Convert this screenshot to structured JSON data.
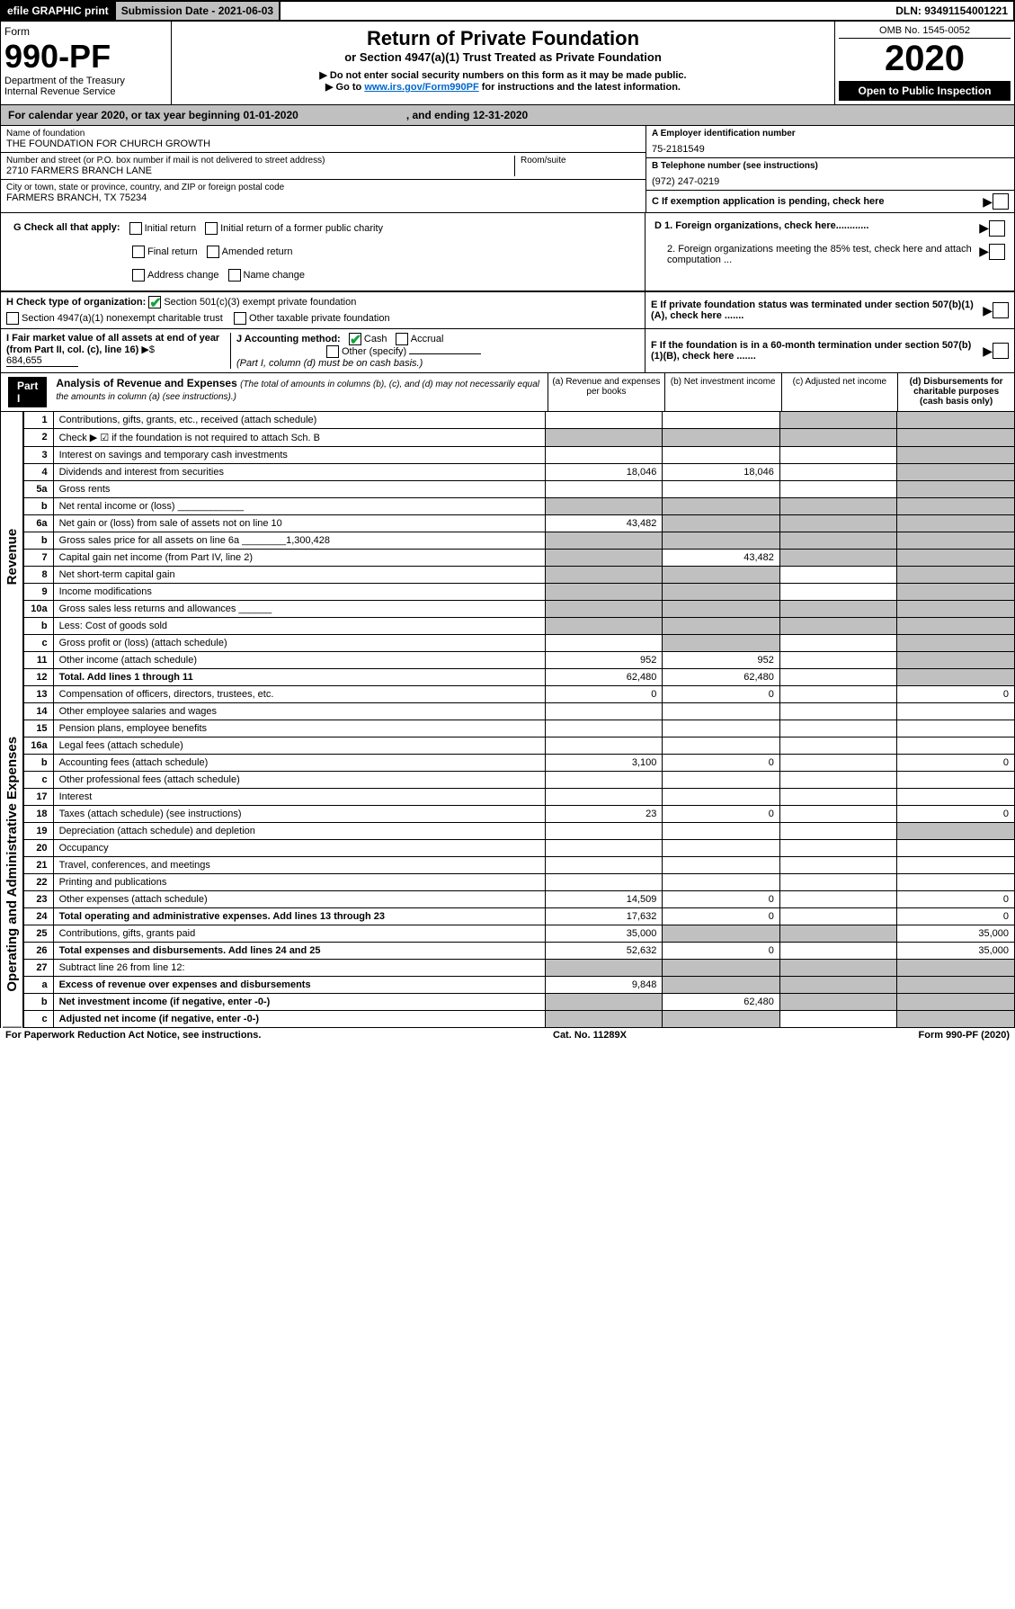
{
  "topbar": {
    "efile": "efile GRAPHIC print",
    "submission": "Submission Date - 2021-06-03",
    "dln": "DLN: 93491154001221"
  },
  "header": {
    "form": "Form",
    "form_no": "990-PF",
    "dept1": "Department of the Treasury",
    "dept2": "Internal Revenue Service",
    "title": "Return of Private Foundation",
    "subtitle": "or Section 4947(a)(1) Trust Treated as Private Foundation",
    "instr1": "▶ Do not enter social security numbers on this form as it may be made public.",
    "instr2_pre": "▶ Go to ",
    "instr2_link": "www.irs.gov/Form990PF",
    "instr2_post": " for instructions and the latest information.",
    "omb": "OMB No. 1545-0052",
    "year": "2020",
    "pub": "Open to Public Inspection"
  },
  "cal_year": {
    "pre": "For calendar year 2020, or tax year beginning 01-01-2020",
    "end": ", and ending 12-31-2020"
  },
  "name": {
    "label": "Name of foundation",
    "val": "THE FOUNDATION FOR CHURCH GROWTH"
  },
  "ein": {
    "label": "A Employer identification number",
    "val": "75-2181549"
  },
  "addr": {
    "label": "Number and street (or P.O. box number if mail is not delivered to street address)",
    "val": "2710 FARMERS BRANCH LANE",
    "room": "Room/suite"
  },
  "phone": {
    "label": "B Telephone number (see instructions)",
    "val": "(972) 247-0219"
  },
  "city": {
    "label": "City or town, state or province, country, and ZIP or foreign postal code",
    "val": "FARMERS BRANCH, TX  75234"
  },
  "c_pending": "C If exemption application is pending, check here",
  "g": {
    "label": "G Check all that apply:",
    "initial": "Initial return",
    "initial_pub": "Initial return of a former public charity",
    "final": "Final return",
    "amended": "Amended return",
    "addr_chg": "Address change",
    "name_chg": "Name change"
  },
  "d": {
    "d1": "D 1. Foreign organizations, check here............",
    "d2": "2. Foreign organizations meeting the 85% test, check here and attach computation ..."
  },
  "h": {
    "label": "H Check type of organization:",
    "s501": "Section 501(c)(3) exempt private foundation",
    "s4947": "Section 4947(a)(1) nonexempt charitable trust",
    "other_tax": "Other taxable private foundation"
  },
  "e": "E If private foundation status was terminated under section 507(b)(1)(A), check here .......",
  "i": {
    "label": "I Fair market value of all assets at end of year (from Part II, col. (c), line 16)",
    "val": "684,655"
  },
  "j": {
    "label": "J Accounting method:",
    "cash": "Cash",
    "accrual": "Accrual",
    "other": "Other (specify)",
    "note": "(Part I, column (d) must be on cash basis.)"
  },
  "f": "F If the foundation is in a 60-month termination under section 507(b)(1)(B), check here .......",
  "part1": {
    "label": "Part I",
    "title": "Analysis of Revenue and Expenses",
    "note": "(The total of amounts in columns (b), (c), and (d) may not necessarily equal the amounts in column (a) (see instructions).)",
    "col_a": "(a)  Revenue and expenses per books",
    "col_b": "(b)  Net investment income",
    "col_c": "(c)  Adjusted net income",
    "col_d": "(d)  Disbursements for charitable purposes (cash basis only)"
  },
  "side_rev": "Revenue",
  "side_exp": "Operating and Administrative Expenses",
  "rows": [
    {
      "n": "1",
      "desc": "Contributions, gifts, grants, etc., received (attach schedule)",
      "a": "",
      "b": "",
      "c": "",
      "d": "",
      "shade_c": true,
      "shade_d": true
    },
    {
      "n": "2",
      "desc": "Check ▶ ☑ if the foundation is not required to attach Sch. B",
      "a": "",
      "b": "",
      "c": "",
      "d": "",
      "shade_a": true,
      "shade_b": true,
      "shade_c": true,
      "shade_d": true,
      "bold_not": true
    },
    {
      "n": "3",
      "desc": "Interest on savings and temporary cash investments",
      "a": "",
      "b": "",
      "c": "",
      "d": "",
      "shade_d": true
    },
    {
      "n": "4",
      "desc": "Dividends and interest from securities",
      "a": "18,046",
      "b": "18,046",
      "c": "",
      "d": "",
      "shade_d": true
    },
    {
      "n": "5a",
      "desc": "Gross rents",
      "a": "",
      "b": "",
      "c": "",
      "d": "",
      "shade_d": true
    },
    {
      "n": "b",
      "desc": "Net rental income or (loss)  ____________",
      "a": "",
      "b": "",
      "c": "",
      "d": "",
      "shade_a": true,
      "shade_b": true,
      "shade_c": true,
      "shade_d": true
    },
    {
      "n": "6a",
      "desc": "Net gain or (loss) from sale of assets not on line 10",
      "a": "43,482",
      "b": "",
      "c": "",
      "d": "",
      "shade_b": true,
      "shade_c": true,
      "shade_d": true
    },
    {
      "n": "b",
      "desc": "Gross sales price for all assets on line 6a ________1,300,428",
      "a": "",
      "b": "",
      "c": "",
      "d": "",
      "shade_a": true,
      "shade_b": true,
      "shade_c": true,
      "shade_d": true
    },
    {
      "n": "7",
      "desc": "Capital gain net income (from Part IV, line 2)",
      "a": "",
      "b": "43,482",
      "c": "",
      "d": "",
      "shade_a": true,
      "shade_c": true,
      "shade_d": true
    },
    {
      "n": "8",
      "desc": "Net short-term capital gain",
      "a": "",
      "b": "",
      "c": "",
      "d": "",
      "shade_a": true,
      "shade_b": true,
      "shade_d": true
    },
    {
      "n": "9",
      "desc": "Income modifications",
      "a": "",
      "b": "",
      "c": "",
      "d": "",
      "shade_a": true,
      "shade_b": true,
      "shade_d": true
    },
    {
      "n": "10a",
      "desc": "Gross sales less returns and allowances  ______",
      "a": "",
      "b": "",
      "c": "",
      "d": "",
      "shade_a": true,
      "shade_b": true,
      "shade_c": true,
      "shade_d": true
    },
    {
      "n": "b",
      "desc": "Less: Cost of goods sold",
      "a": "",
      "b": "",
      "c": "",
      "d": "",
      "shade_a": true,
      "shade_b": true,
      "shade_c": true,
      "shade_d": true
    },
    {
      "n": "c",
      "desc": "Gross profit or (loss) (attach schedule)",
      "a": "",
      "b": "",
      "c": "",
      "d": "",
      "shade_b": true,
      "shade_d": true
    },
    {
      "n": "11",
      "desc": "Other income (attach schedule)",
      "a": "952",
      "b": "952",
      "c": "",
      "d": "",
      "shade_d": true
    },
    {
      "n": "12",
      "desc": "Total. Add lines 1 through 11",
      "a": "62,480",
      "b": "62,480",
      "c": "",
      "d": "",
      "bold": true,
      "shade_d": true
    },
    {
      "n": "13",
      "desc": "Compensation of officers, directors, trustees, etc.",
      "a": "0",
      "b": "0",
      "c": "",
      "d": "0"
    },
    {
      "n": "14",
      "desc": "Other employee salaries and wages",
      "a": "",
      "b": "",
      "c": "",
      "d": ""
    },
    {
      "n": "15",
      "desc": "Pension plans, employee benefits",
      "a": "",
      "b": "",
      "c": "",
      "d": ""
    },
    {
      "n": "16a",
      "desc": "Legal fees (attach schedule)",
      "a": "",
      "b": "",
      "c": "",
      "d": ""
    },
    {
      "n": "b",
      "desc": "Accounting fees (attach schedule)",
      "a": "3,100",
      "b": "0",
      "c": "",
      "d": "0"
    },
    {
      "n": "c",
      "desc": "Other professional fees (attach schedule)",
      "a": "",
      "b": "",
      "c": "",
      "d": ""
    },
    {
      "n": "17",
      "desc": "Interest",
      "a": "",
      "b": "",
      "c": "",
      "d": ""
    },
    {
      "n": "18",
      "desc": "Taxes (attach schedule) (see instructions)",
      "a": "23",
      "b": "0",
      "c": "",
      "d": "0"
    },
    {
      "n": "19",
      "desc": "Depreciation (attach schedule) and depletion",
      "a": "",
      "b": "",
      "c": "",
      "d": "",
      "shade_d": true
    },
    {
      "n": "20",
      "desc": "Occupancy",
      "a": "",
      "b": "",
      "c": "",
      "d": ""
    },
    {
      "n": "21",
      "desc": "Travel, conferences, and meetings",
      "a": "",
      "b": "",
      "c": "",
      "d": ""
    },
    {
      "n": "22",
      "desc": "Printing and publications",
      "a": "",
      "b": "",
      "c": "",
      "d": ""
    },
    {
      "n": "23",
      "desc": "Other expenses (attach schedule)",
      "a": "14,509",
      "b": "0",
      "c": "",
      "d": "0"
    },
    {
      "n": "24",
      "desc": "Total operating and administrative expenses. Add lines 13 through 23",
      "a": "17,632",
      "b": "0",
      "c": "",
      "d": "0",
      "bold": true
    },
    {
      "n": "25",
      "desc": "Contributions, gifts, grants paid",
      "a": "35,000",
      "b": "",
      "c": "",
      "d": "35,000",
      "shade_b": true,
      "shade_c": true
    },
    {
      "n": "26",
      "desc": "Total expenses and disbursements. Add lines 24 and 25",
      "a": "52,632",
      "b": "0",
      "c": "",
      "d": "35,000",
      "bold": true
    },
    {
      "n": "27",
      "desc": "Subtract line 26 from line 12:",
      "a": "",
      "b": "",
      "c": "",
      "d": "",
      "shade_a": true,
      "shade_b": true,
      "shade_c": true,
      "shade_d": true
    },
    {
      "n": "a",
      "desc": "Excess of revenue over expenses and disbursements",
      "a": "9,848",
      "b": "",
      "c": "",
      "d": "",
      "bold": true,
      "shade_b": true,
      "shade_c": true,
      "shade_d": true
    },
    {
      "n": "b",
      "desc": "Net investment income (if negative, enter -0-)",
      "a": "",
      "b": "62,480",
      "c": "",
      "d": "",
      "bold": true,
      "shade_a": true,
      "shade_c": true,
      "shade_d": true
    },
    {
      "n": "c",
      "desc": "Adjusted net income (if negative, enter -0-)",
      "a": "",
      "b": "",
      "c": "",
      "d": "",
      "bold": true,
      "shade_a": true,
      "shade_b": true,
      "shade_d": true
    }
  ],
  "footer": {
    "left": "For Paperwork Reduction Act Notice, see instructions.",
    "mid": "Cat. No. 11289X",
    "right": "Form 990-PF (2020)"
  }
}
